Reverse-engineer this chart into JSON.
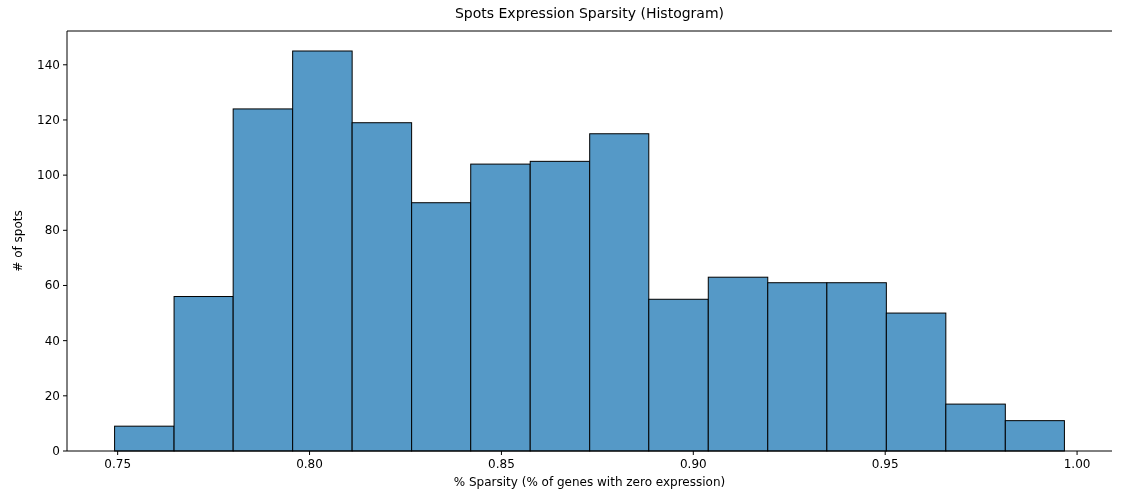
{
  "chart_data": {
    "type": "histogram",
    "title": "Spots Expression Sparsity (Histogram)",
    "xlabel": "% Sparsity (% of genes with zero expression)",
    "ylabel": "# of spots",
    "bins": [
      0.7492,
      0.7647,
      0.7801,
      0.7956,
      0.8111,
      0.8266,
      0.842,
      0.8575,
      0.873,
      0.8884,
      0.9039,
      0.9194,
      0.9348,
      0.9503,
      0.9658,
      0.9813,
      0.9967
    ],
    "values": [
      9,
      56,
      124,
      145,
      119,
      90,
      104,
      105,
      115,
      55,
      63,
      61,
      61,
      50,
      17,
      11
    ],
    "color": "#5599c7",
    "xlim": [
      0.7368,
      1.0091
    ],
    "xticks": [
      {
        "value": 0.75,
        "label": "0.75"
      },
      {
        "value": 0.8,
        "label": "0.80"
      },
      {
        "value": 0.85,
        "label": "0.85"
      },
      {
        "value": 0.9,
        "label": "0.90"
      },
      {
        "value": 0.95,
        "label": "0.95"
      },
      {
        "value": 1.0,
        "label": "1.00"
      }
    ],
    "ylim": [
      0,
      152.25
    ],
    "yticks": [
      0,
      20,
      40,
      60,
      80,
      100,
      120,
      140
    ]
  }
}
